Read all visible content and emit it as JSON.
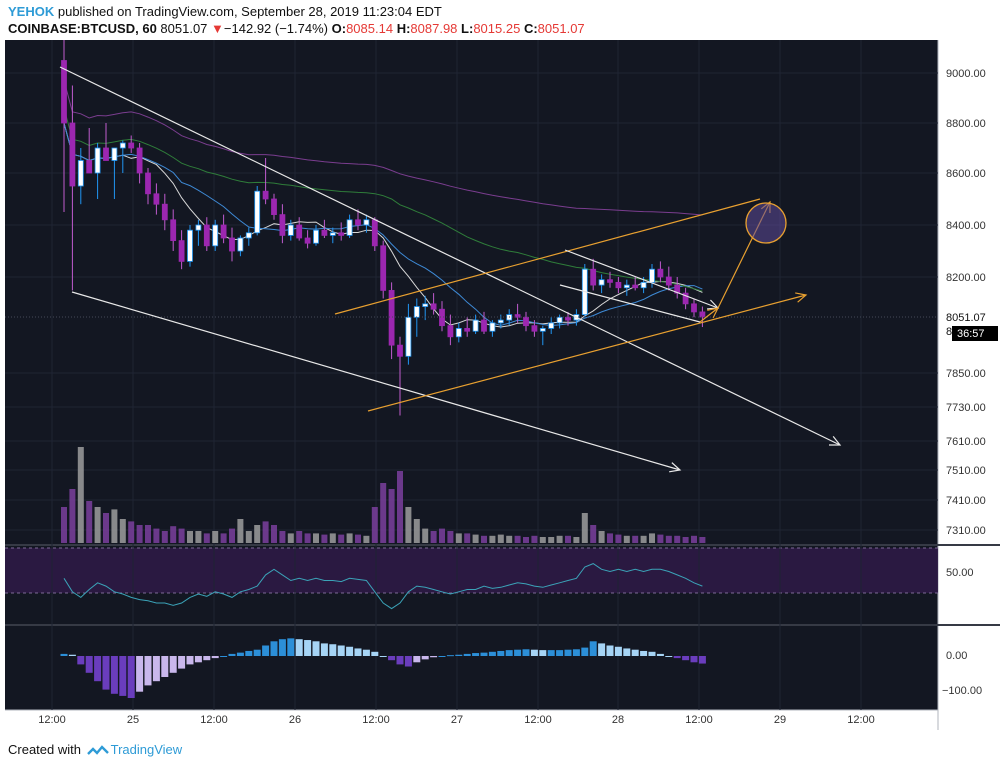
{
  "header": {
    "author": "YEHOK",
    "published_text": "published on TradingView.com, September 28, 2019 11:23:04 EDT",
    "symbol": "COINBASE:BTCUSD, 60",
    "last": "8051.07",
    "change_arrow": "▼",
    "change": "−142.92 (−1.74%)",
    "o_label": "O:",
    "o_value": "8085.14",
    "h_label": "H:",
    "h_value": "8087.98",
    "l_label": "L:",
    "l_value": "8015.25",
    "c_label": "C:",
    "c_value": "8051.07"
  },
  "footer": {
    "created_with": "Created with",
    "brand": "TradingView",
    "logo_icon": "tradingview-logo-icon"
  },
  "chart_data": {
    "type": "candlestick",
    "symbol": "COINBASE:BTCUSD",
    "interval": "60",
    "price_axis": {
      "ticks": [
        9000.0,
        8800.0,
        8600.0,
        8400.0,
        8200.0,
        7850.0,
        7730.0,
        7610.0,
        7510.0,
        7410.0,
        7310.0
      ],
      "tick_labels": [
        "9000.00",
        "8800.00",
        "8600.00",
        "8400.00",
        "8200.00",
        "7850.00",
        "7730.00",
        "7610.00",
        "7510.00",
        "7410.00",
        "7310.00"
      ],
      "current_price_label": "8051.07",
      "countdown_label": "36:57",
      "partial_label": "8"
    },
    "time_axis": {
      "tick_labels": [
        "12:00",
        "25",
        "12:00",
        "26",
        "12:00",
        "27",
        "12:00",
        "28",
        "12:00",
        "29",
        "12:00"
      ]
    },
    "rsi_panel": {
      "tick_labels": [
        "50.00"
      ]
    },
    "macd_panel": {
      "tick_labels": [
        "0.00",
        "−100.00"
      ]
    },
    "candles": [
      [
        9050,
        9150,
        8450,
        8800
      ],
      [
        8800,
        8950,
        8150,
        8550
      ],
      [
        8550,
        8700,
        8480,
        8650
      ],
      [
        8650,
        8780,
        8600,
        8600
      ],
      [
        8600,
        8720,
        8500,
        8700
      ],
      [
        8700,
        8800,
        8650,
        8650
      ],
      [
        8650,
        8700,
        8500,
        8700
      ],
      [
        8700,
        8730,
        8600,
        8720
      ],
      [
        8720,
        8750,
        8680,
        8700
      ],
      [
        8700,
        8720,
        8560,
        8600
      ],
      [
        8600,
        8620,
        8480,
        8520
      ],
      [
        8520,
        8560,
        8440,
        8480
      ],
      [
        8480,
        8520,
        8380,
        8420
      ],
      [
        8420,
        8460,
        8300,
        8340
      ],
      [
        8340,
        8380,
        8230,
        8260
      ],
      [
        8260,
        8400,
        8240,
        8380
      ],
      [
        8380,
        8420,
        8320,
        8400
      ],
      [
        8400,
        8430,
        8300,
        8320
      ],
      [
        8320,
        8420,
        8300,
        8400
      ],
      [
        8400,
        8440,
        8330,
        8350
      ],
      [
        8350,
        8390,
        8260,
        8300
      ],
      [
        8300,
        8360,
        8280,
        8350
      ],
      [
        8350,
        8390,
        8320,
        8370
      ],
      [
        8370,
        8550,
        8360,
        8530
      ],
      [
        8530,
        8660,
        8480,
        8500
      ],
      [
        8500,
        8520,
        8420,
        8440
      ],
      [
        8440,
        8480,
        8330,
        8360
      ],
      [
        8360,
        8420,
        8340,
        8400
      ],
      [
        8400,
        8430,
        8340,
        8350
      ],
      [
        8350,
        8380,
        8310,
        8330
      ],
      [
        8330,
        8400,
        8320,
        8380
      ],
      [
        8380,
        8420,
        8350,
        8360
      ],
      [
        8360,
        8390,
        8330,
        8370
      ],
      [
        8370,
        8410,
        8340,
        8360
      ],
      [
        8360,
        8440,
        8350,
        8420
      ],
      [
        8420,
        8460,
        8380,
        8400
      ],
      [
        8400,
        8440,
        8370,
        8420
      ],
      [
        8420,
        8430,
        8300,
        8320
      ],
      [
        8320,
        8340,
        8120,
        8150
      ],
      [
        8150,
        8180,
        7900,
        7950
      ],
      [
        7950,
        7980,
        7700,
        7910
      ],
      [
        7910,
        8100,
        7880,
        8050
      ],
      [
        8050,
        8120,
        7980,
        8090
      ],
      [
        8090,
        8130,
        8040,
        8100
      ],
      [
        8100,
        8140,
        8060,
        8080
      ],
      [
        8080,
        8110,
        8000,
        8020
      ],
      [
        8020,
        8060,
        7950,
        7980
      ],
      [
        7980,
        8030,
        7960,
        8010
      ],
      [
        8010,
        8050,
        7980,
        8000
      ],
      [
        8000,
        8060,
        7990,
        8040
      ],
      [
        8040,
        8070,
        7990,
        8000
      ],
      [
        8000,
        8040,
        7980,
        8030
      ],
      [
        8030,
        8060,
        8010,
        8040
      ],
      [
        8040,
        8080,
        8020,
        8060
      ],
      [
        8060,
        8100,
        8030,
        8050
      ],
      [
        8050,
        8070,
        8000,
        8020
      ],
      [
        8020,
        8040,
        7980,
        8000
      ],
      [
        8000,
        8020,
        7950,
        8010
      ],
      [
        8010,
        8050,
        7990,
        8030
      ],
      [
        8030,
        8060,
        8010,
        8050
      ],
      [
        8050,
        8070,
        8020,
        8040
      ],
      [
        8040,
        8080,
        8020,
        8060
      ],
      [
        8060,
        8250,
        8050,
        8230
      ],
      [
        8230,
        8270,
        8150,
        8170
      ],
      [
        8170,
        8210,
        8140,
        8190
      ],
      [
        8190,
        8220,
        8160,
        8180
      ],
      [
        8180,
        8200,
        8140,
        8160
      ],
      [
        8160,
        8190,
        8130,
        8170
      ],
      [
        8170,
        8200,
        8150,
        8160
      ],
      [
        8160,
        8200,
        8140,
        8180
      ],
      [
        8180,
        8250,
        8160,
        8230
      ],
      [
        8230,
        8260,
        8180,
        8200
      ],
      [
        8200,
        8240,
        8150,
        8170
      ],
      [
        8170,
        8200,
        8120,
        8140
      ],
      [
        8140,
        8160,
        8080,
        8100
      ],
      [
        8100,
        8120,
        8050,
        8070
      ],
      [
        8070,
        8090,
        8015,
        8051
      ]
    ],
    "volume_relative": [
      0.3,
      0.45,
      0.8,
      0.35,
      0.3,
      0.25,
      0.28,
      0.2,
      0.18,
      0.15,
      0.15,
      0.12,
      0.1,
      0.14,
      0.12,
      0.1,
      0.1,
      0.08,
      0.1,
      0.08,
      0.12,
      0.2,
      0.1,
      0.15,
      0.18,
      0.15,
      0.1,
      0.08,
      0.1,
      0.08,
      0.08,
      0.07,
      0.08,
      0.07,
      0.08,
      0.07,
      0.06,
      0.3,
      0.5,
      0.45,
      0.6,
      0.3,
      0.2,
      0.12,
      0.1,
      0.12,
      0.1,
      0.08,
      0.08,
      0.07,
      0.06,
      0.06,
      0.07,
      0.06,
      0.06,
      0.05,
      0.06,
      0.05,
      0.05,
      0.06,
      0.06,
      0.05,
      0.25,
      0.15,
      0.1,
      0.08,
      0.07,
      0.06,
      0.06,
      0.06,
      0.08,
      0.07,
      0.06,
      0.06,
      0.05,
      0.06,
      0.05
    ],
    "macd_hist": [
      5,
      3,
      -20,
      -40,
      -60,
      -80,
      -90,
      -95,
      -100,
      -85,
      -70,
      -60,
      -50,
      -40,
      -30,
      -20,
      -15,
      -10,
      -5,
      0,
      5,
      8,
      12,
      15,
      25,
      35,
      40,
      42,
      40,
      38,
      35,
      30,
      28,
      25,
      22,
      18,
      15,
      10,
      0,
      -10,
      -20,
      -25,
      -15,
      -8,
      -3,
      0,
      2,
      3,
      5,
      7,
      8,
      10,
      12,
      14,
      15,
      16,
      15,
      14,
      14,
      14,
      15,
      16,
      20,
      35,
      30,
      25,
      22,
      18,
      15,
      12,
      10,
      5,
      0,
      -5,
      -10,
      -15,
      -18
    ],
    "rsi": [
      52,
      40,
      35,
      42,
      48,
      45,
      40,
      38,
      35,
      33,
      32,
      30,
      30,
      28,
      30,
      35,
      38,
      36,
      40,
      38,
      35,
      40,
      42,
      45,
      55,
      60,
      55,
      50,
      52,
      50,
      52,
      50,
      50,
      49,
      52,
      51,
      50,
      40,
      30,
      25,
      30,
      40,
      45,
      44,
      42,
      40,
      38,
      40,
      42,
      42,
      45,
      43,
      44,
      46,
      48,
      47,
      45,
      44,
      46,
      48,
      50,
      52,
      62,
      65,
      60,
      58,
      60,
      58,
      60,
      58,
      60,
      60,
      58,
      55,
      52,
      48,
      45
    ]
  }
}
